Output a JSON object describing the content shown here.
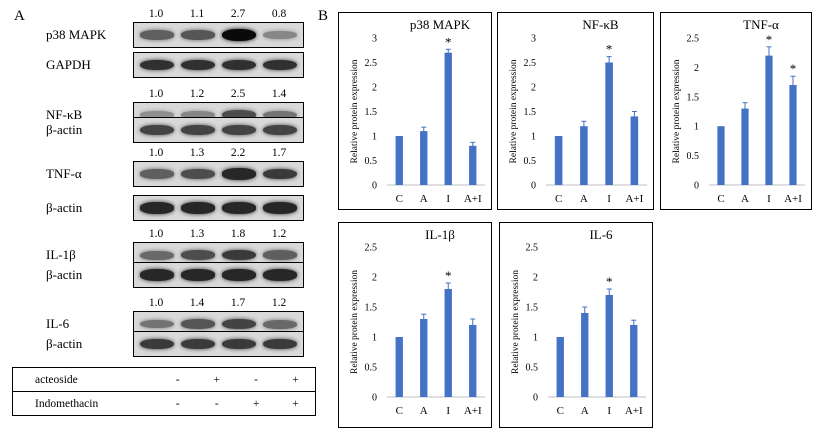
{
  "panel_a_letter": "A",
  "panel_b_letter": "B",
  "blots": [
    {
      "label": "p38 MAPK",
      "values": [
        "1.0",
        "1.1",
        "2.7",
        "0.8"
      ],
      "intensity": [
        0.55,
        0.6,
        1.0,
        0.35
      ]
    },
    {
      "label": "GAPDH",
      "values": [],
      "intensity": [
        0.8,
        0.8,
        0.8,
        0.8
      ]
    },
    {
      "label": "NF-κB",
      "values": [
        "1.0",
        "1.2",
        "2.5",
        "1.4"
      ],
      "intensity": [
        0.3,
        0.35,
        0.65,
        0.45
      ]
    },
    {
      "label": "β-actin",
      "values": [],
      "intensity": [
        0.7,
        0.7,
        0.7,
        0.7
      ]
    },
    {
      "label": "TNF-α",
      "values": [
        "1.0",
        "1.3",
        "2.2",
        "1.7"
      ],
      "intensity": [
        0.55,
        0.65,
        0.85,
        0.75
      ]
    },
    {
      "label": "β-actin",
      "values": [],
      "intensity": [
        0.85,
        0.85,
        0.85,
        0.85
      ]
    },
    {
      "label": "IL-1β",
      "values": [
        "1.0",
        "1.3",
        "1.8",
        "1.2"
      ],
      "intensity": [
        0.5,
        0.65,
        0.75,
        0.55
      ]
    },
    {
      "label": "β-actin",
      "values": [],
      "intensity": [
        0.85,
        0.85,
        0.85,
        0.85
      ]
    },
    {
      "label": "IL-6",
      "values": [
        "1.0",
        "1.4",
        "1.7",
        "1.2"
      ],
      "intensity": [
        0.45,
        0.6,
        0.7,
        0.5
      ]
    },
    {
      "label": "β-actin",
      "values": [],
      "intensity": [
        0.75,
        0.75,
        0.75,
        0.75
      ]
    }
  ],
  "treatments": [
    {
      "name": "acteoside",
      "signs": [
        "-",
        "+",
        "-",
        "+"
      ]
    },
    {
      "name": "Indomethacin",
      "signs": [
        "-",
        "-",
        "+",
        "+"
      ]
    }
  ],
  "bar_color": "#4472c4",
  "chart_data": [
    {
      "type": "bar",
      "title": "p38 MAPK",
      "ylabel": "Relative protein expression",
      "categories": [
        "C",
        "A",
        "I",
        "A+I"
      ],
      "values": [
        1.0,
        1.1,
        2.7,
        0.8
      ],
      "errors": [
        0.0,
        0.08,
        0.07,
        0.07
      ],
      "significance": [
        "",
        "",
        "*",
        ""
      ],
      "ylim": [
        0,
        3
      ],
      "yticks": [
        "0",
        "0.5",
        "1",
        "1.5",
        "2",
        "2.5",
        "3"
      ]
    },
    {
      "type": "bar",
      "title": "NF-κB",
      "ylabel": "Relative protein expression",
      "categories": [
        "C",
        "A",
        "I",
        "A+I"
      ],
      "values": [
        1.0,
        1.2,
        2.5,
        1.4
      ],
      "errors": [
        0.0,
        0.1,
        0.12,
        0.1
      ],
      "significance": [
        "",
        "",
        "*",
        ""
      ],
      "ylim": [
        0,
        3
      ],
      "yticks": [
        "0",
        "0.5",
        "1",
        "1.5",
        "2",
        "2.5",
        "3"
      ]
    },
    {
      "type": "bar",
      "title": "TNF-α",
      "ylabel": "Relative protein expression",
      "categories": [
        "C",
        "A",
        "I",
        "A+I"
      ],
      "values": [
        1.0,
        1.3,
        2.2,
        1.7
      ],
      "errors": [
        0.0,
        0.1,
        0.15,
        0.15
      ],
      "significance": [
        "",
        "",
        "*",
        "*"
      ],
      "ylim": [
        0,
        2.5
      ],
      "yticks": [
        "0",
        "0.5",
        "1",
        "1.5",
        "2",
        "2.5"
      ]
    },
    {
      "type": "bar",
      "title": "IL-1β",
      "ylabel": "Relative protein expression",
      "categories": [
        "C",
        "A",
        "I",
        "A+I"
      ],
      "values": [
        1.0,
        1.3,
        1.8,
        1.2
      ],
      "errors": [
        0.0,
        0.08,
        0.1,
        0.1
      ],
      "significance": [
        "",
        "",
        "*",
        ""
      ],
      "ylim": [
        0,
        2.5
      ],
      "yticks": [
        "0",
        "0.5",
        "1",
        "1.5",
        "2",
        "2.5"
      ]
    },
    {
      "type": "bar",
      "title": "IL-6",
      "ylabel": "Relative protein expression",
      "categories": [
        "C",
        "A",
        "I",
        "A+I"
      ],
      "values": [
        1.0,
        1.4,
        1.7,
        1.2
      ],
      "errors": [
        0.0,
        0.1,
        0.1,
        0.08
      ],
      "significance": [
        "",
        "",
        "*",
        ""
      ],
      "ylim": [
        0,
        2.5
      ],
      "yticks": [
        "0",
        "0.5",
        "1",
        "1.5",
        "2",
        "2.5"
      ]
    }
  ]
}
